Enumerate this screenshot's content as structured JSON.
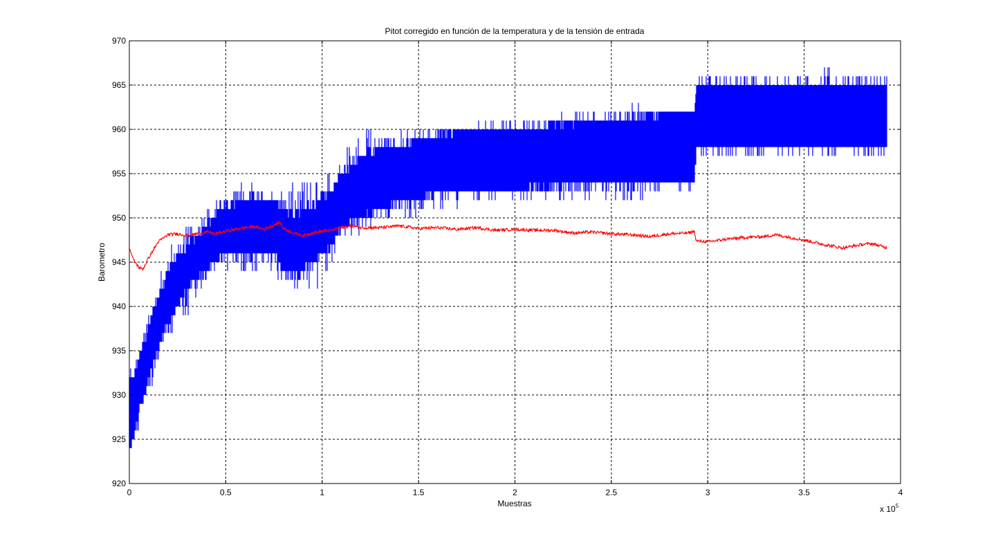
{
  "chart_data": {
    "type": "line",
    "title": "Pitot corregido en función de la temperatura y de la tensión de entrada",
    "xlabel": "Muestras",
    "ylabel": "Barometro",
    "x_multiplier": {
      "base": "x 10",
      "exponent": "5"
    },
    "xlim": [
      0,
      4
    ],
    "ylim": [
      920,
      970
    ],
    "x_ticks": [
      "0",
      "0.5",
      "1",
      "1.5",
      "2",
      "2.5",
      "3",
      "3.5",
      "4"
    ],
    "y_ticks": [
      "920",
      "925",
      "930",
      "935",
      "940",
      "945",
      "950",
      "955",
      "960",
      "965",
      "970"
    ],
    "grid": true,
    "grid_style": "dashed",
    "series": [
      {
        "color": "#0000ff",
        "style": "noisy band (min/max envelope)",
        "x": [
          0,
          0.02,
          0.05,
          0.1,
          0.15,
          0.2,
          0.25,
          0.3,
          0.35,
          0.4,
          0.45,
          0.5,
          0.6,
          0.7,
          0.75,
          0.8,
          0.85,
          0.9,
          1.0,
          1.05,
          1.1,
          1.2,
          1.3,
          1.4,
          1.5,
          1.6,
          1.8,
          2.0,
          2.2,
          2.4,
          2.6,
          2.8,
          2.93,
          2.94,
          3.0,
          3.2,
          3.4,
          3.6,
          3.8,
          3.93
        ],
        "center": [
          927,
          928.5,
          931,
          935,
          938,
          941,
          943,
          944.5,
          945.5,
          947,
          948,
          948.5,
          949,
          949,
          949,
          947.5,
          947,
          947.5,
          948.5,
          950,
          951.5,
          953,
          954,
          954.5,
          955,
          955,
          955.5,
          956,
          956.5,
          957,
          957.5,
          958,
          958,
          961,
          961,
          961.5,
          961.5,
          961.5,
          961.5,
          961.5
        ],
        "low": [
          924,
          925,
          928,
          932,
          935,
          938,
          940,
          942,
          943,
          944,
          945,
          946,
          946,
          946,
          946,
          944,
          943.5,
          944,
          946,
          947,
          949,
          950,
          951,
          952,
          952,
          953,
          953,
          953,
          953.5,
          954,
          954,
          954,
          954,
          958,
          958,
          958,
          958,
          958,
          958,
          958
        ],
        "high": [
          932,
          932,
          934,
          938,
          941,
          944,
          946,
          947,
          948,
          949,
          950.5,
          951.5,
          952,
          952,
          952,
          951,
          950.5,
          951,
          952,
          953,
          955,
          957,
          958,
          958,
          959,
          959.5,
          960,
          960,
          960.5,
          961,
          961,
          962,
          962,
          965,
          965,
          965,
          965,
          965,
          965,
          965
        ],
        "min_spike": [
          924,
          924,
          926,
          930,
          933,
          936,
          938,
          939,
          941,
          943,
          944,
          944,
          944,
          944,
          944,
          942.5,
          942,
          942.5,
          942,
          945,
          947,
          948,
          949,
          950,
          950,
          951,
          951.5,
          952,
          952,
          952,
          952,
          953,
          953,
          957,
          957,
          957,
          957,
          957,
          957,
          957
        ],
        "max_spike": [
          933,
          933,
          935,
          939,
          943,
          946,
          948,
          949.5,
          950,
          951,
          952,
          953,
          954,
          953.5,
          953,
          953,
          955,
          954,
          954,
          956,
          957,
          962,
          959,
          960,
          960,
          960,
          960.5,
          961,
          961.5,
          962,
          963,
          962,
          962,
          966,
          966,
          966,
          966,
          967,
          966,
          966
        ]
      },
      {
        "color": "#ff0000",
        "style": "line",
        "x": [
          0,
          0.02,
          0.05,
          0.07,
          0.1,
          0.15,
          0.2,
          0.25,
          0.3,
          0.35,
          0.4,
          0.45,
          0.5,
          0.55,
          0.6,
          0.65,
          0.7,
          0.75,
          0.78,
          0.8,
          0.85,
          0.9,
          0.95,
          1.0,
          1.05,
          1.1,
          1.15,
          1.2,
          1.3,
          1.4,
          1.5,
          1.6,
          1.7,
          1.8,
          1.9,
          2.0,
          2.1,
          2.2,
          2.3,
          2.4,
          2.5,
          2.6,
          2.7,
          2.8,
          2.9,
          2.93,
          2.94,
          3.0,
          3.1,
          3.2,
          3.3,
          3.35,
          3.4,
          3.5,
          3.6,
          3.7,
          3.8,
          3.85,
          3.9,
          3.93
        ],
        "y": [
          946.7,
          945.3,
          944.4,
          944.2,
          945.5,
          947.3,
          948.1,
          948.2,
          948.0,
          948.2,
          948.4,
          948.2,
          948.5,
          948.7,
          948.9,
          949.0,
          948.7,
          949.2,
          949.5,
          948.8,
          948.3,
          948.0,
          948.3,
          948.5,
          948.6,
          948.9,
          949.1,
          948.9,
          948.9,
          949.1,
          948.8,
          948.9,
          948.7,
          948.9,
          948.6,
          948.7,
          948.6,
          948.6,
          948.3,
          948.4,
          948.2,
          948.1,
          947.9,
          948.2,
          948.3,
          948.5,
          947.4,
          947.3,
          947.6,
          947.8,
          947.9,
          948.1,
          947.9,
          947.5,
          947.0,
          946.6,
          947.0,
          947.1,
          946.8,
          946.6
        ]
      }
    ]
  }
}
